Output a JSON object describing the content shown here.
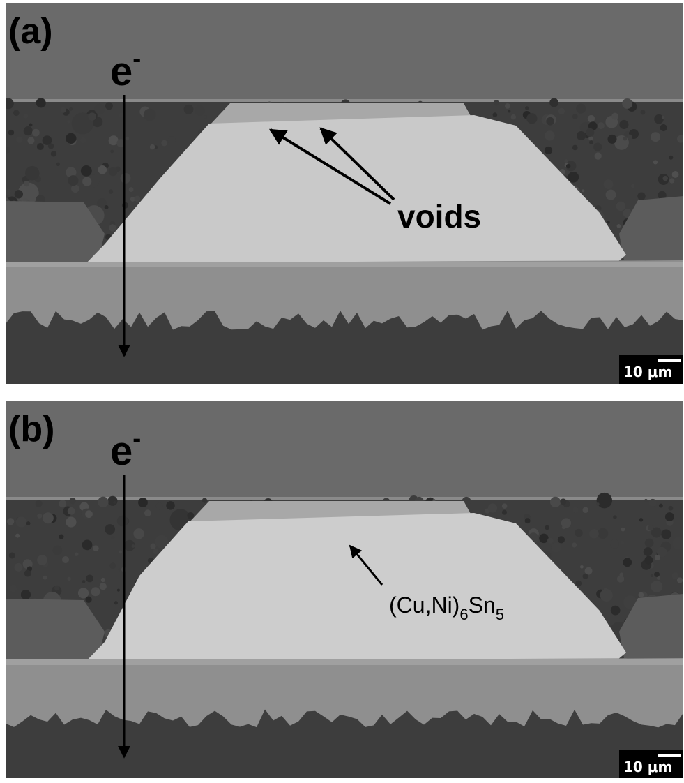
{
  "panels": [
    {
      "label": "(a)",
      "electron": "e",
      "electron_charge": "-",
      "annotation": "voids",
      "scale_bar": "10 μm"
    },
    {
      "label": "(b)",
      "electron": "e",
      "electron_charge": "-",
      "annotation_parts": [
        "(Cu,Ni)",
        "6",
        "Sn",
        "5"
      ],
      "scale_bar": "10 μm"
    }
  ]
}
